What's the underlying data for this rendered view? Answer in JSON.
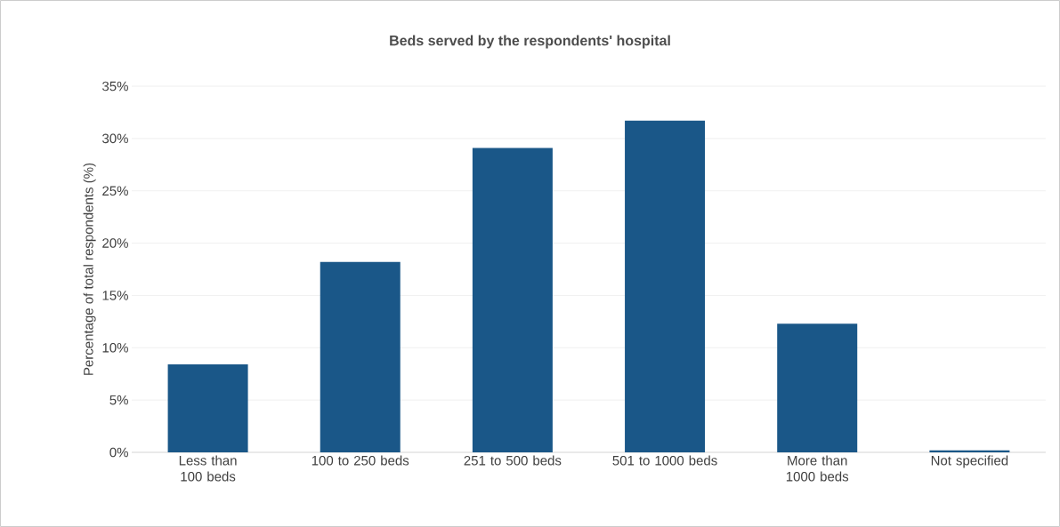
{
  "chart_data": {
    "type": "bar",
    "title": "Beds served by the respondents' hospital",
    "ylabel": "Percentage of total respondents (%)",
    "categories": [
      "Less than 100 beds",
      "100 to 250 beds",
      "251 to 500 beds",
      "501 to 1000 beds",
      "More than 1000 beds",
      "Not specified"
    ],
    "values": [
      8.4,
      18.2,
      29.1,
      31.7,
      12.3,
      0.2
    ],
    "color": "#1a5788",
    "ylim": [
      0,
      35
    ],
    "yticks": [
      {
        "value": 0,
        "label": "0%"
      },
      {
        "value": 5,
        "label": "5%"
      },
      {
        "value": 10,
        "label": "10%"
      },
      {
        "value": 15,
        "label": "15%"
      },
      {
        "value": 20,
        "label": "20%"
      },
      {
        "value": 25,
        "label": "25%"
      },
      {
        "value": 30,
        "label": "30%"
      },
      {
        "value": 35,
        "label": "35%"
      }
    ],
    "grid": "y"
  }
}
